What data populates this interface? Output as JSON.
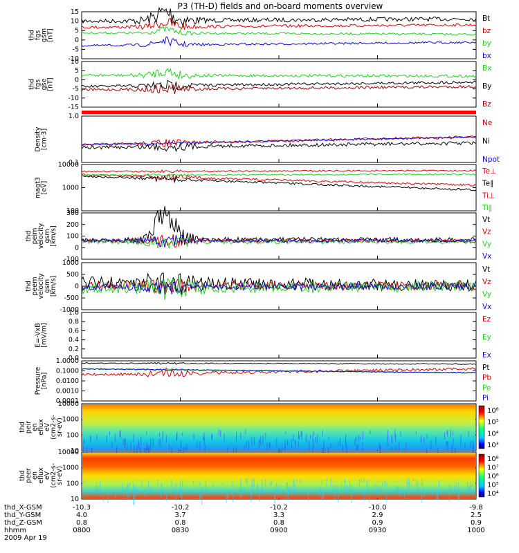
{
  "title": "P3 (TH-D) fields and on-board moments overview",
  "colors": {
    "black": "#000000",
    "red": "#d40000",
    "green": "#1fd11f",
    "blue": "#0a0ad2",
    "darkred": "#9a0000"
  },
  "x_ticks": [
    "0800",
    "0830",
    "0900",
    "0930",
    "1000"
  ],
  "footer": {
    "rows": [
      {
        "label": "thd_X-GSM",
        "values": [
          "-10.3",
          "-10.2",
          "-10.2",
          "-10.0",
          "-9.8"
        ]
      },
      {
        "label": "thd_Y-GSM",
        "values": [
          "4.0",
          "3.7",
          "3.3",
          "2.9",
          "2.5"
        ]
      },
      {
        "label": "thd_Z-GSM",
        "values": [
          "0.8",
          "0.8",
          "0.8",
          "0.9",
          "0.9"
        ]
      },
      {
        "label": "hhmm",
        "values": [
          "0800",
          "0830",
          "0900",
          "0930",
          "1000"
        ]
      }
    ],
    "date": "2009 Apr 19"
  },
  "chart_data": [
    {
      "type": "line",
      "ylabel": [
        "thd",
        "fgs",
        "gsm",
        "[nT]"
      ],
      "ylim": [
        -10,
        15
      ],
      "ticks": [
        "15",
        "10",
        "5",
        "0",
        "-5",
        "-10"
      ],
      "series": [
        {
          "name": "Bt",
          "color": "black"
        },
        {
          "name": "bz",
          "color": "red"
        },
        {
          "name": "by",
          "color": "green"
        },
        {
          "name": "bx",
          "color": "blue"
        }
      ]
    },
    {
      "type": "line",
      "ylabel": [
        "thd",
        "fgs",
        "gse",
        "[nT]"
      ],
      "ylim": [
        -15,
        10
      ],
      "ticks": [
        "10",
        "5",
        "0",
        "-5",
        "-10",
        "-15"
      ],
      "series": [
        {
          "name": "Bx",
          "color": "green"
        },
        {
          "name": "By",
          "color": "black"
        },
        {
          "name": "Bz",
          "color": "darkred"
        }
      ]
    },
    {
      "type": "bar",
      "note": "red status bar"
    },
    {
      "type": "line",
      "ylabel": [
        "Density",
        "[cm-3]"
      ],
      "log": true,
      "ticks": [
        "1.0",
        "0.1"
      ],
      "series": [
        {
          "name": "Ne",
          "color": "red"
        },
        {
          "name": "Ni",
          "color": "black"
        },
        {
          "name": "Npot",
          "color": "blue"
        }
      ]
    },
    {
      "type": "line",
      "ylabel": [
        "magt3",
        "[eV]"
      ],
      "log": true,
      "ticks": [
        "10000",
        "1000",
        "100"
      ],
      "series": [
        {
          "name": "Te⊥",
          "color": "red"
        },
        {
          "name": "Te∥",
          "color": "black"
        },
        {
          "name": "Ti⊥",
          "color": "red"
        },
        {
          "name": "Ti∥",
          "color": "green"
        }
      ]
    },
    {
      "type": "line",
      "ylabel": [
        "thd",
        "peim",
        "velocity",
        "gsm",
        "[km/s]"
      ],
      "ylim": [
        -100,
        300
      ],
      "ticks": [
        "300",
        "200",
        "100",
        "0",
        "-100"
      ],
      "series": [
        {
          "name": "Vt",
          "color": "black"
        },
        {
          "name": "Vz",
          "color": "red"
        },
        {
          "name": "Vy",
          "color": "green"
        },
        {
          "name": "Vx",
          "color": "blue"
        }
      ]
    },
    {
      "type": "line",
      "ylabel": [
        "thd",
        "peem",
        "velocity",
        "gsm",
        "[km/s]"
      ],
      "ylim": [
        -1000,
        1000
      ],
      "ticks": [
        "1000",
        "500",
        "0",
        "-500",
        "-1000"
      ],
      "series": [
        {
          "name": "Vt",
          "color": "black"
        },
        {
          "name": "Vz",
          "color": "red"
        },
        {
          "name": "Vy",
          "color": "green"
        },
        {
          "name": "Vx",
          "color": "blue"
        }
      ]
    },
    {
      "type": "line",
      "ylabel": [
        "E=-VxB",
        "[mV/m]"
      ],
      "ylim": [
        0,
        1
      ],
      "ticks": [
        "1.0",
        "0.8",
        "0.6",
        "0.4",
        "0.2",
        "0.0"
      ],
      "series": [
        {
          "name": "Ez",
          "color": "red"
        },
        {
          "name": "Ey",
          "color": "green"
        },
        {
          "name": "Ex",
          "color": "blue"
        }
      ]
    },
    {
      "type": "line",
      "ylabel": [
        "Pressure",
        "[nPa]"
      ],
      "log": true,
      "ticks": [
        "1.0000",
        "0.1000",
        "0.0100",
        "0.0010",
        "0.0001"
      ],
      "series": [
        {
          "name": "Pt",
          "color": "black"
        },
        {
          "name": "Pb",
          "color": "red"
        },
        {
          "name": "Pe",
          "color": "green"
        },
        {
          "name": "Pi",
          "color": "blue"
        }
      ]
    },
    {
      "type": "heatmap",
      "ylabel": [
        "thd",
        "peir",
        "en",
        "eflux",
        "eV",
        "(cm2-s-",
        "sr-eV)"
      ],
      "ticks": [
        "10000",
        "1000",
        "100",
        "10"
      ],
      "colorbar": [
        "10⁶",
        "10⁵",
        "10⁴",
        "10³"
      ]
    },
    {
      "type": "heatmap",
      "ylabel": [
        "thd",
        "peer",
        "en",
        "eflux",
        "eV",
        "(cm2-s-",
        "sr-eV)"
      ],
      "ticks": [
        "10000",
        "1000",
        "100",
        "10"
      ],
      "colorbar": [
        "10⁸",
        "10⁷",
        "10⁶",
        "10⁵",
        "10⁴"
      ]
    }
  ]
}
